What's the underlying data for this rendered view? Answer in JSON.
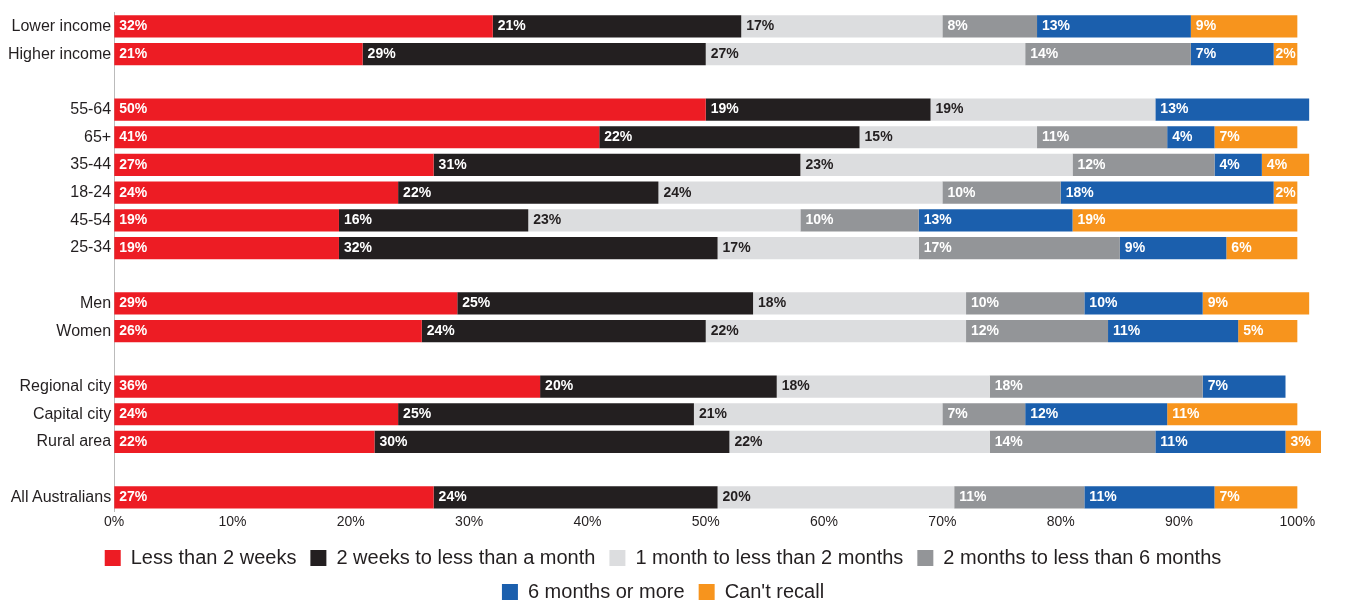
{
  "chart_data": {
    "type": "bar",
    "orientation": "horizontal",
    "stacked": true,
    "categories": [
      "Lower income",
      "Higher income",
      null,
      "55-64",
      "65+",
      "35-44",
      "18-24",
      "45-54",
      "25-34",
      null,
      "Men",
      "Women",
      null,
      "Regional city",
      "Capital city",
      "Rural area",
      null,
      "All Australians"
    ],
    "series": [
      {
        "name": "Less than 2 weeks",
        "color": "#ed1c24",
        "values": [
          32,
          21,
          null,
          50,
          41,
          27,
          24,
          19,
          19,
          null,
          29,
          26,
          null,
          36,
          24,
          22,
          null,
          27
        ],
        "value_labels": [
          "32%",
          "21%",
          null,
          "50%",
          "41%",
          "27%",
          "24%",
          "19%",
          "19%",
          null,
          "29%",
          "26%",
          null,
          "36%",
          "24%",
          "22%",
          null,
          "27%"
        ]
      },
      {
        "name": "2 weeks to less than a month",
        "color": "#231f20",
        "values": [
          21,
          29,
          null,
          19,
          22,
          31,
          22,
          16,
          32,
          null,
          25,
          24,
          null,
          20,
          25,
          30,
          null,
          24
        ],
        "value_labels": [
          "21%",
          "29%",
          null,
          "19%",
          "22%",
          "31%",
          "22%",
          "16%",
          "32%",
          null,
          "25%",
          "24%",
          null,
          "20%",
          "25%",
          "30%",
          null,
          "24%"
        ]
      },
      {
        "name": "1 month to less than 2 months",
        "color": "#dcdddf",
        "values": [
          17,
          27,
          null,
          19,
          15,
          23,
          24,
          23,
          17,
          null,
          18,
          22,
          null,
          18,
          21,
          22,
          null,
          20
        ],
        "value_labels": [
          "17%",
          "27%",
          null,
          "19%",
          "15%",
          "23%",
          "24%",
          "23%",
          "17%",
          null,
          "18%",
          "22%",
          null,
          "18%",
          "21%",
          "22%",
          null,
          "20%"
        ]
      },
      {
        "name": "2 months to less than 6 months",
        "color": "#939598",
        "values": [
          8,
          14,
          null,
          null,
          11,
          12,
          10,
          10,
          17,
          null,
          10,
          12,
          null,
          18,
          7,
          14,
          null,
          11
        ],
        "value_labels": [
          "8%",
          "14%",
          null,
          null,
          "11%",
          "12%",
          "10%",
          "10%",
          "17%",
          null,
          "10%",
          "12%",
          null,
          "18%",
          "7%",
          "14%",
          null,
          "11%"
        ]
      },
      {
        "name": "6 months or more",
        "color": "#1b5fad",
        "values": [
          13,
          7,
          null,
          13,
          4,
          4,
          18,
          13,
          9,
          null,
          10,
          11,
          null,
          7,
          12,
          11,
          null,
          11
        ],
        "value_labels": [
          "13%",
          "7%",
          null,
          "13%",
          "4%",
          "4%",
          "18%",
          "13%",
          "9%",
          null,
          "10%",
          "11%",
          null,
          "7%",
          "12%",
          "11%",
          null,
          "11%"
        ]
      },
      {
        "name": "Can't recall",
        "color": "#f7941d",
        "values": [
          9,
          2,
          null,
          null,
          7,
          4,
          2,
          19,
          6,
          null,
          9,
          5,
          null,
          null,
          11,
          3,
          null,
          7
        ],
        "value_labels": [
          "9%",
          "2%",
          null,
          null,
          "7%",
          "4%",
          "2%",
          "19%",
          "6%",
          null,
          "9%",
          "5%",
          null,
          null,
          "11%",
          "3%",
          null,
          "7%"
        ]
      }
    ],
    "xlim": [
      0,
      102
    ],
    "xticks": [
      {
        "value": 0,
        "label": "0%"
      },
      {
        "value": 10,
        "label": "10%"
      },
      {
        "value": 20,
        "label": "20%"
      },
      {
        "value": 30,
        "label": "30%"
      },
      {
        "value": 40,
        "label": "40%"
      },
      {
        "value": 50,
        "label": "50%"
      },
      {
        "value": 60,
        "label": "60%"
      },
      {
        "value": 70,
        "label": "70%"
      },
      {
        "value": 80,
        "label": "80%"
      },
      {
        "value": 90,
        "label": "90%"
      },
      {
        "value": 100,
        "label": "100%"
      }
    ],
    "grid": false,
    "legend": "bottom"
  }
}
